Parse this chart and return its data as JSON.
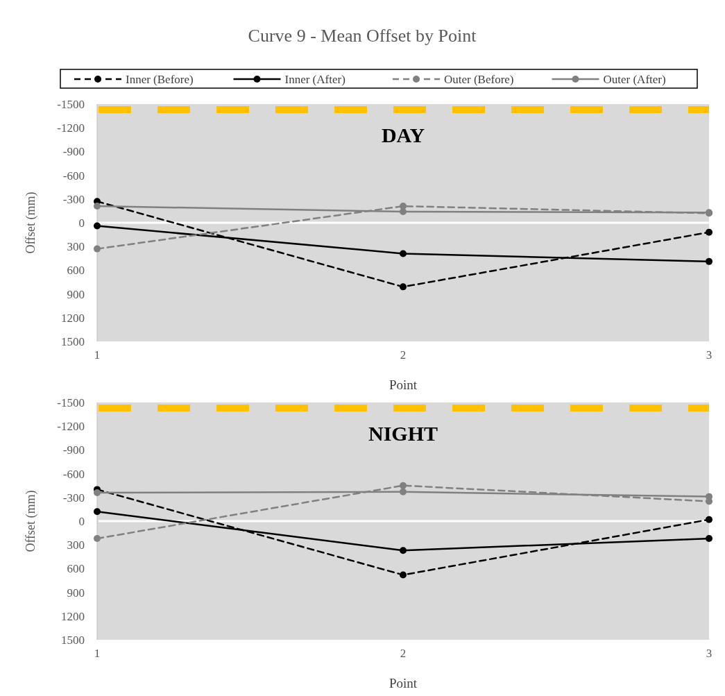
{
  "chart_data": [
    {
      "type": "line",
      "title": "Curve 9 - Mean Offset by Point",
      "xlabel": "Point",
      "ylabel": "Offset (mm)",
      "annotations": [
        "DAY"
      ],
      "x": [
        1,
        2,
        3
      ],
      "xlim": [
        1,
        3
      ],
      "xticks": [
        1,
        2,
        3
      ],
      "ylim": [
        1500,
        -1500
      ],
      "yticks": [
        -1500,
        -1200,
        -900,
        -600,
        -300,
        0,
        300,
        600,
        900,
        1200,
        1500
      ],
      "grid": false,
      "legend": "top",
      "marker": "circle",
      "series": [
        {
          "name": "Inner (Before)",
          "color": "#000000",
          "line_style": "dashed",
          "values": [
            -270,
            810,
            120
          ]
        },
        {
          "name": "Inner (After)",
          "color": "#000000",
          "line_style": "solid",
          "values": [
            40,
            390,
            490
          ]
        },
        {
          "name": "Outer (Before)",
          "color": "#808080",
          "line_style": "dashed",
          "values": [
            330,
            -210,
            -120
          ]
        },
        {
          "name": "Outer (After)",
          "color": "#808080",
          "line_style": "solid",
          "values": [
            -210,
            -140,
            -130
          ]
        }
      ],
      "ref_lines": [
        {
          "axis": "y",
          "value": 0,
          "label": null,
          "color": "#ffffff",
          "line_style": "solid"
        },
        {
          "axis": "y",
          "value": -1430,
          "label": null,
          "color": "#ffc000",
          "line_style": "dashed"
        }
      ]
    },
    {
      "type": "line",
      "xlabel": "Point",
      "ylabel": "Offset (mm)",
      "annotations": [
        "NIGHT"
      ],
      "x": [
        1,
        2,
        3
      ],
      "xlim": [
        1,
        3
      ],
      "xticks": [
        1,
        2,
        3
      ],
      "ylim": [
        1500,
        -1500
      ],
      "yticks": [
        -1500,
        -1200,
        -900,
        -600,
        -300,
        0,
        300,
        600,
        900,
        1200,
        1500
      ],
      "grid": false,
      "legend": false,
      "marker": "circle",
      "series": [
        {
          "color": "#000000",
          "line_style": "dashed",
          "values": [
            -400,
            680,
            -20
          ]
        },
        {
          "color": "#000000",
          "line_style": "solid",
          "values": [
            -120,
            370,
            220
          ]
        },
        {
          "color": "#808080",
          "line_style": "dashed",
          "values": [
            220,
            -450,
            -250
          ]
        },
        {
          "color": "#808080",
          "line_style": "solid",
          "values": [
            -360,
            -370,
            -310
          ]
        }
      ],
      "ref_lines": [
        {
          "axis": "y",
          "value": 0,
          "label": null,
          "color": "#ffffff",
          "line_style": "solid"
        },
        {
          "axis": "y",
          "value": -1430,
          "label": null,
          "color": "#ffc000",
          "line_style": "dashed"
        }
      ]
    }
  ]
}
